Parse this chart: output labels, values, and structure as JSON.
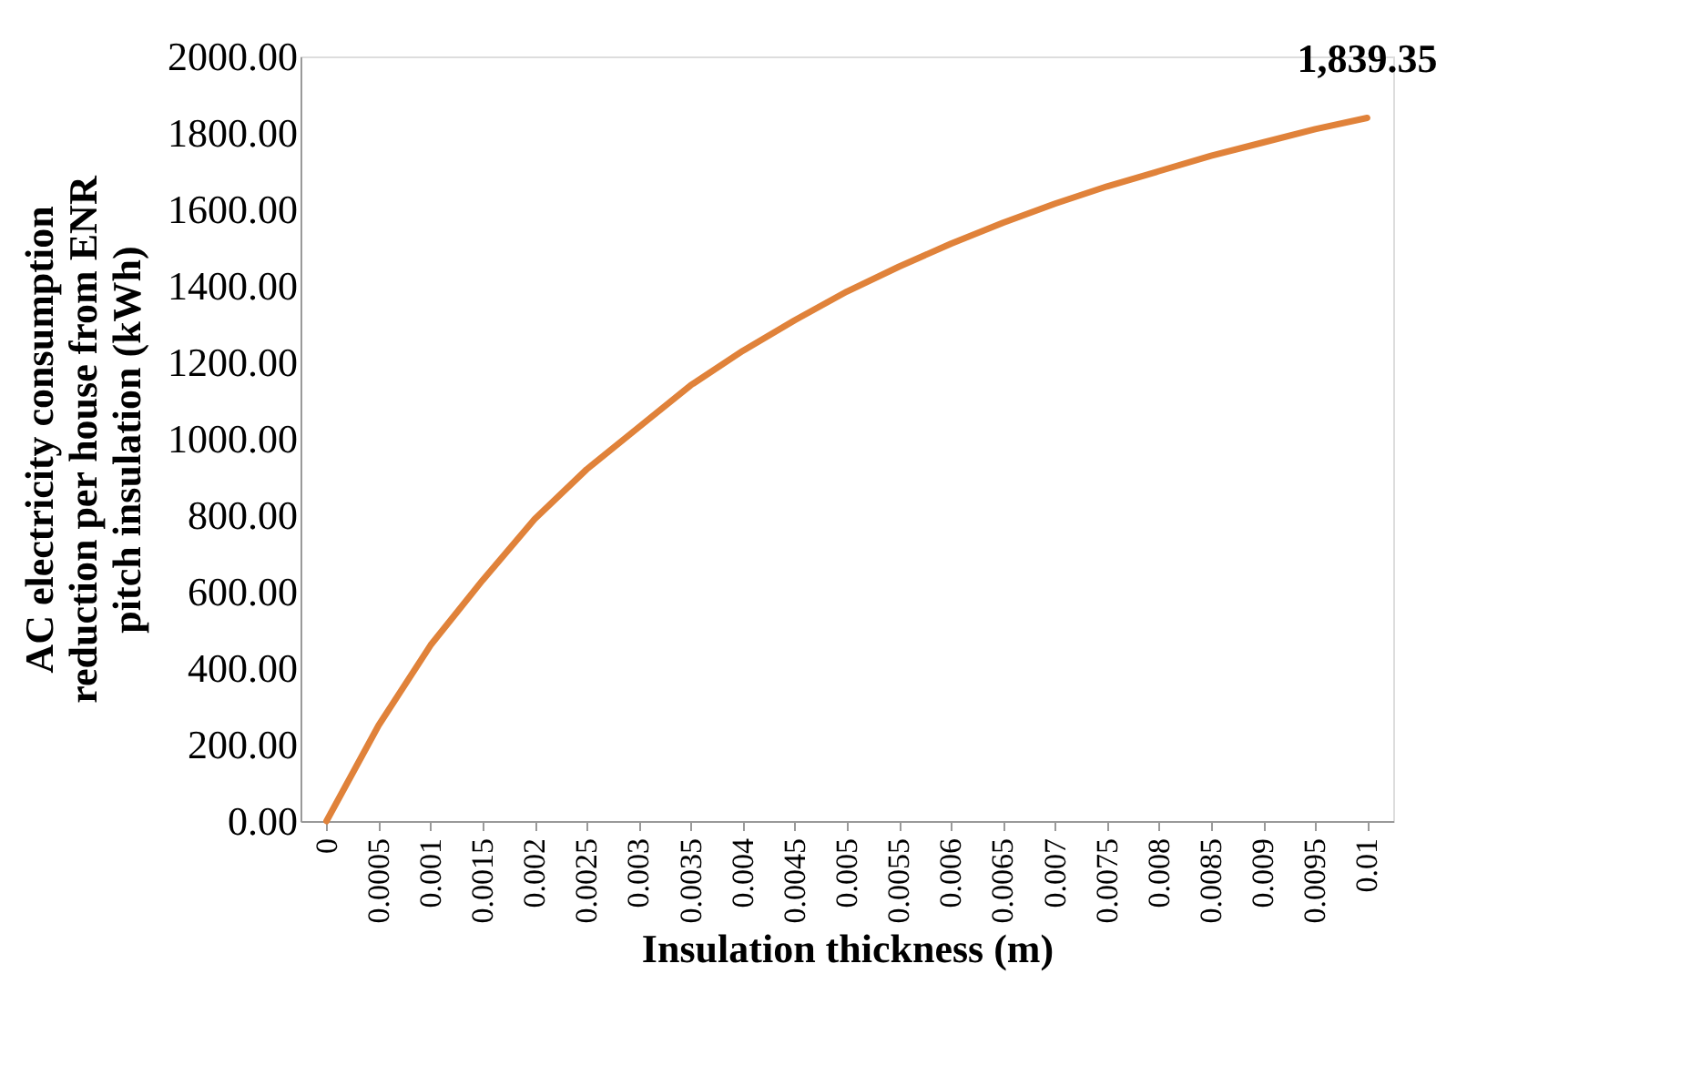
{
  "chart_data": {
    "type": "line",
    "xlabel": "Insulation thickness (m)",
    "ylabel": "AC electricity consumption reduction per house from  ENR pitch insulation (kWh)",
    "categories": [
      "0",
      "0.0005",
      "0.001",
      "0.0015",
      "0.002",
      "0.0025",
      "0.003",
      "0.0035",
      "0.004",
      "0.0045",
      "0.005",
      "0.0055",
      "0.006",
      "0.0065",
      "0.007",
      "0.0075",
      "0.008",
      "0.0085",
      "0.009",
      "0.0095",
      "0.01"
    ],
    "series": [
      {
        "color": "#e0823a",
        "values": [
          0,
          250,
          460,
          630,
          790,
          920,
          1030,
          1140,
          1230,
          1310,
          1385,
          1450,
          1510,
          1565,
          1615,
          1660,
          1700,
          1740,
          1775,
          1810,
          1839.35
        ],
        "value_labels": [
          null,
          null,
          null,
          null,
          null,
          null,
          null,
          null,
          null,
          null,
          null,
          null,
          null,
          null,
          null,
          null,
          null,
          null,
          null,
          null,
          "1,839.35"
        ]
      }
    ],
    "ylim": [
      0,
      2000
    ],
    "yticks": [
      {
        "value": 0,
        "label": "0.00"
      },
      {
        "value": 200,
        "label": "200.00"
      },
      {
        "value": 400,
        "label": "400.00"
      },
      {
        "value": 600,
        "label": "600.00"
      },
      {
        "value": 800,
        "label": "800.00"
      },
      {
        "value": 1000,
        "label": "1000.00"
      },
      {
        "value": 1200,
        "label": "1200.00"
      },
      {
        "value": 1400,
        "label": "1400.00"
      },
      {
        "value": 1600,
        "label": "1600.00"
      },
      {
        "value": 1800,
        "label": "1800.00"
      },
      {
        "value": 2000,
        "label": "2000.00"
      }
    ],
    "grid": false,
    "legend": false,
    "marker": "none",
    "line_style": "solid"
  }
}
